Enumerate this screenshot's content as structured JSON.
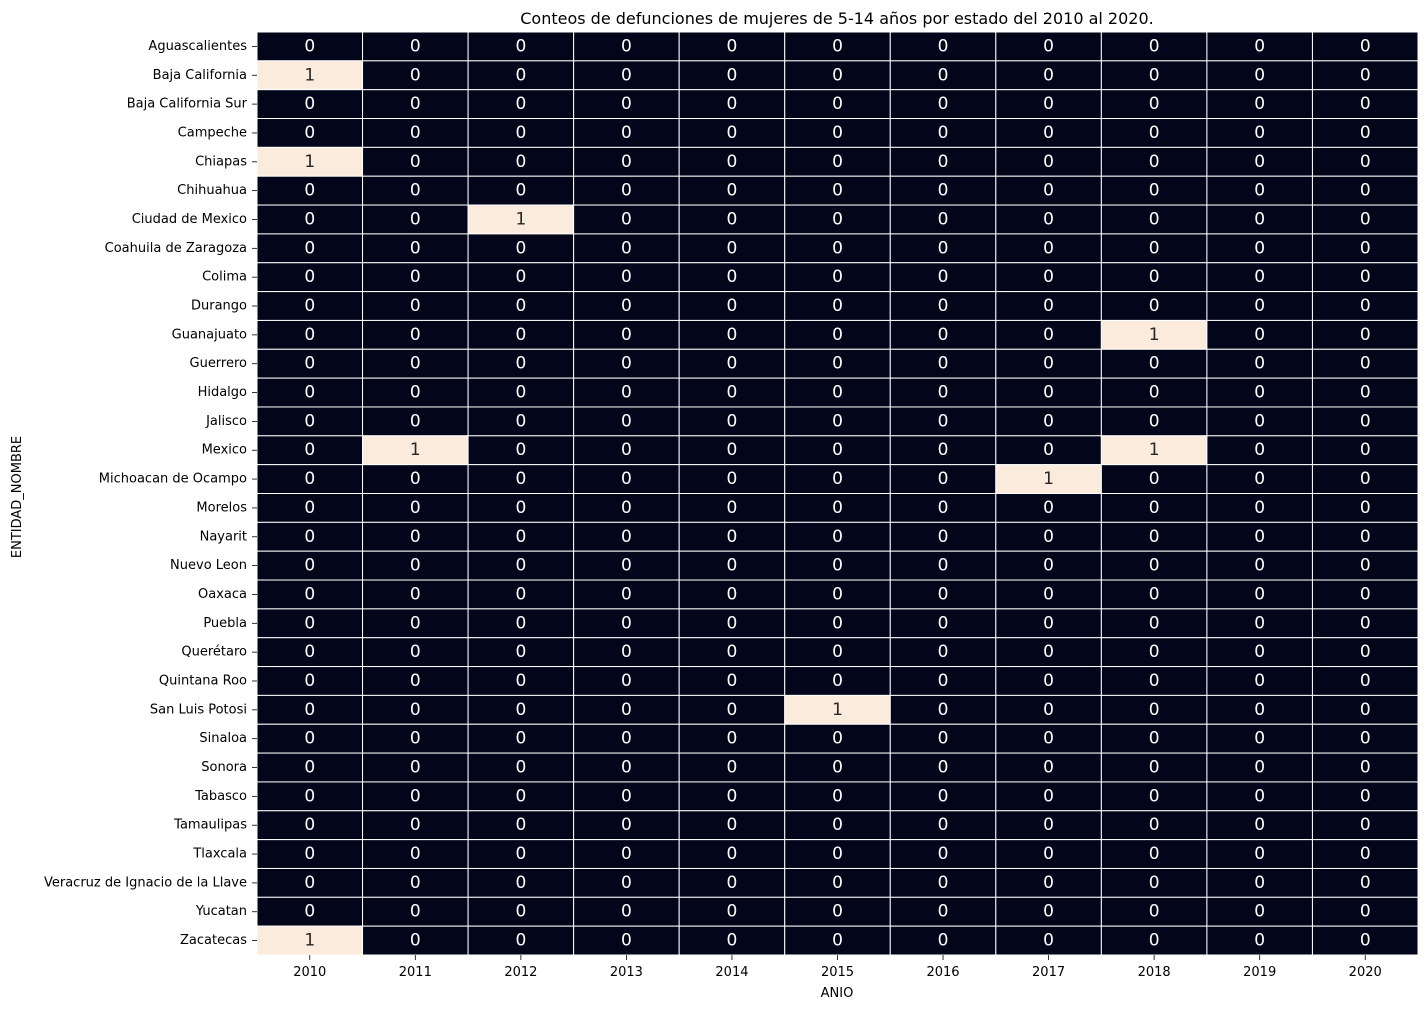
{
  "chart_data": {
    "type": "heatmap",
    "title": "Conteos de defunciones de mujeres de 5-14 años por estado del 2010 al 2020.",
    "xlabel": "ANIO",
    "ylabel": "ENTIDAD_NOMBRE",
    "x": [
      "2010",
      "2011",
      "2012",
      "2013",
      "2014",
      "2015",
      "2016",
      "2017",
      "2018",
      "2019",
      "2020"
    ],
    "y": [
      "Aguascalientes",
      "Baja California",
      "Baja California Sur",
      "Campeche",
      "Chiapas",
      "Chihuahua",
      "Ciudad de Mexico",
      "Coahuila de Zaragoza",
      "Colima",
      "Durango",
      "Guanajuato",
      "Guerrero",
      "Hidalgo",
      "Jalisco",
      "Mexico",
      "Michoacan de Ocampo",
      "Morelos",
      "Nayarit",
      "Nuevo Leon",
      "Oaxaca",
      "Puebla",
      "Querétaro",
      "Quintana Roo",
      "San Luis Potosi",
      "Sinaloa",
      "Sonora",
      "Tabasco",
      "Tamaulipas",
      "Tlaxcala",
      "Veracruz de Ignacio de la Llave",
      "Yucatan",
      "Zacatecas"
    ],
    "values": [
      [
        0,
        0,
        0,
        0,
        0,
        0,
        0,
        0,
        0,
        0,
        0
      ],
      [
        1,
        0,
        0,
        0,
        0,
        0,
        0,
        0,
        0,
        0,
        0
      ],
      [
        0,
        0,
        0,
        0,
        0,
        0,
        0,
        0,
        0,
        0,
        0
      ],
      [
        0,
        0,
        0,
        0,
        0,
        0,
        0,
        0,
        0,
        0,
        0
      ],
      [
        1,
        0,
        0,
        0,
        0,
        0,
        0,
        0,
        0,
        0,
        0
      ],
      [
        0,
        0,
        0,
        0,
        0,
        0,
        0,
        0,
        0,
        0,
        0
      ],
      [
        0,
        0,
        1,
        0,
        0,
        0,
        0,
        0,
        0,
        0,
        0
      ],
      [
        0,
        0,
        0,
        0,
        0,
        0,
        0,
        0,
        0,
        0,
        0
      ],
      [
        0,
        0,
        0,
        0,
        0,
        0,
        0,
        0,
        0,
        0,
        0
      ],
      [
        0,
        0,
        0,
        0,
        0,
        0,
        0,
        0,
        0,
        0,
        0
      ],
      [
        0,
        0,
        0,
        0,
        0,
        0,
        0,
        0,
        1,
        0,
        0
      ],
      [
        0,
        0,
        0,
        0,
        0,
        0,
        0,
        0,
        0,
        0,
        0
      ],
      [
        0,
        0,
        0,
        0,
        0,
        0,
        0,
        0,
        0,
        0,
        0
      ],
      [
        0,
        0,
        0,
        0,
        0,
        0,
        0,
        0,
        0,
        0,
        0
      ],
      [
        0,
        1,
        0,
        0,
        0,
        0,
        0,
        0,
        1,
        0,
        0
      ],
      [
        0,
        0,
        0,
        0,
        0,
        0,
        0,
        1,
        0,
        0,
        0
      ],
      [
        0,
        0,
        0,
        0,
        0,
        0,
        0,
        0,
        0,
        0,
        0
      ],
      [
        0,
        0,
        0,
        0,
        0,
        0,
        0,
        0,
        0,
        0,
        0
      ],
      [
        0,
        0,
        0,
        0,
        0,
        0,
        0,
        0,
        0,
        0,
        0
      ],
      [
        0,
        0,
        0,
        0,
        0,
        0,
        0,
        0,
        0,
        0,
        0
      ],
      [
        0,
        0,
        0,
        0,
        0,
        0,
        0,
        0,
        0,
        0,
        0
      ],
      [
        0,
        0,
        0,
        0,
        0,
        0,
        0,
        0,
        0,
        0,
        0
      ],
      [
        0,
        0,
        0,
        0,
        0,
        0,
        0,
        0,
        0,
        0,
        0
      ],
      [
        0,
        0,
        0,
        0,
        0,
        1,
        0,
        0,
        0,
        0,
        0
      ],
      [
        0,
        0,
        0,
        0,
        0,
        0,
        0,
        0,
        0,
        0,
        0
      ],
      [
        0,
        0,
        0,
        0,
        0,
        0,
        0,
        0,
        0,
        0,
        0
      ],
      [
        0,
        0,
        0,
        0,
        0,
        0,
        0,
        0,
        0,
        0,
        0
      ],
      [
        0,
        0,
        0,
        0,
        0,
        0,
        0,
        0,
        0,
        0,
        0
      ],
      [
        0,
        0,
        0,
        0,
        0,
        0,
        0,
        0,
        0,
        0,
        0
      ],
      [
        0,
        0,
        0,
        0,
        0,
        0,
        0,
        0,
        0,
        0,
        0
      ],
      [
        0,
        0,
        0,
        0,
        0,
        0,
        0,
        0,
        0,
        0,
        0
      ],
      [
        1,
        0,
        0,
        0,
        0,
        0,
        0,
        0,
        0,
        0,
        0
      ]
    ],
    "color_scale": {
      "low": "#03051a",
      "high": "#faebdd"
    },
    "annotation_colors": {
      "on_dark": "#ffffff",
      "on_light": "#262626"
    },
    "grid": false,
    "legend": "none"
  }
}
